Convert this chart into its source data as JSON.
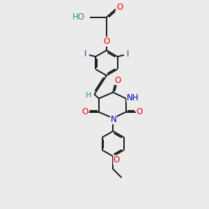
{
  "bg_color": "#ebebeb",
  "bond_color": "#1a1a1a",
  "bond_width": 1.4,
  "atom_colors": {
    "O": "#ff0000",
    "N": "#0000cc",
    "I": "#9400d3",
    "H": "#2e8b8b",
    "C": "#1a1a1a"
  },
  "font_size": 8.5,
  "fig_width": 3.0,
  "fig_height": 3.0,
  "dpi": 100,
  "xlim": [
    0,
    10
  ],
  "ylim": [
    0,
    10
  ]
}
